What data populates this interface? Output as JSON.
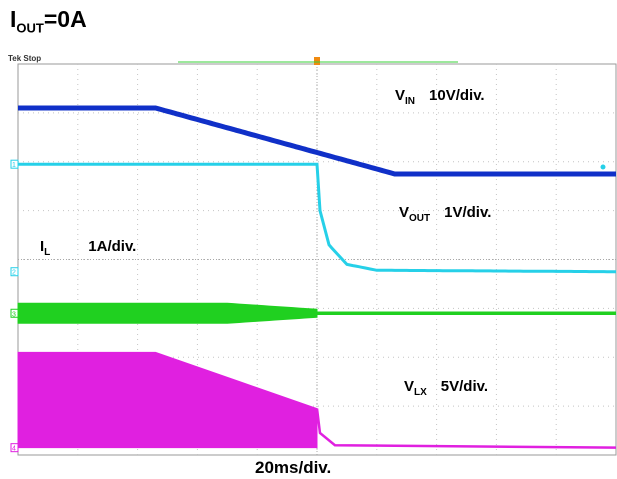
{
  "title": {
    "main": "I",
    "sub": "OUT",
    "value": "=0A"
  },
  "status": "Tek Stop",
  "time_scale": "20ms/div.",
  "channels": [
    {
      "key": "vin",
      "label": "V",
      "sub": "IN",
      "scale": "10V/div.",
      "color": "#1030c8"
    },
    {
      "key": "vout",
      "label": "V",
      "sub": "OUT",
      "scale": "1V/div.",
      "color": "#26d0e8"
    },
    {
      "key": "il",
      "label": "I",
      "sub": "L",
      "scale": "1A/div.",
      "color": "#20d020"
    },
    {
      "key": "vlx",
      "label": "V",
      "sub": "LX",
      "scale": "5V/div.",
      "color": "#e020e0"
    }
  ],
  "channel_markers": [
    "1",
    "2",
    "3",
    "4"
  ],
  "chart_data": {
    "type": "line",
    "xlabel": "20ms/div.",
    "grid": true,
    "x_divisions": 10,
    "y_divisions": 8,
    "trigger_time_div": 5,
    "series": [
      {
        "name": "VIN",
        "scale": "10V/div.",
        "points": [
          [
            0,
            7.1
          ],
          [
            2.3,
            7.1
          ],
          [
            6.3,
            5.75
          ],
          [
            10,
            5.75
          ]
        ]
      },
      {
        "name": "VOUT",
        "scale": "1V/div.",
        "points": [
          [
            0,
            5.95
          ],
          [
            5.0,
            5.95
          ],
          [
            5.05,
            5.0
          ],
          [
            5.2,
            4.3
          ],
          [
            5.5,
            3.9
          ],
          [
            6.0,
            3.78
          ],
          [
            10,
            3.75
          ]
        ]
      },
      {
        "name": "IL",
        "scale": "1A/div.",
        "points": [
          [
            0,
            2.9
          ],
          [
            10,
            2.9
          ]
        ],
        "band_before_div": 5
      },
      {
        "name": "VLX",
        "scale": "5V/div.",
        "points": [
          [
            0,
            2.1
          ],
          [
            2.3,
            2.1
          ],
          [
            5.0,
            0.95
          ],
          [
            5.05,
            0.45
          ],
          [
            5.3,
            0.2
          ],
          [
            10,
            0.15
          ]
        ],
        "switching_fill_before_div": 5
      }
    ]
  }
}
